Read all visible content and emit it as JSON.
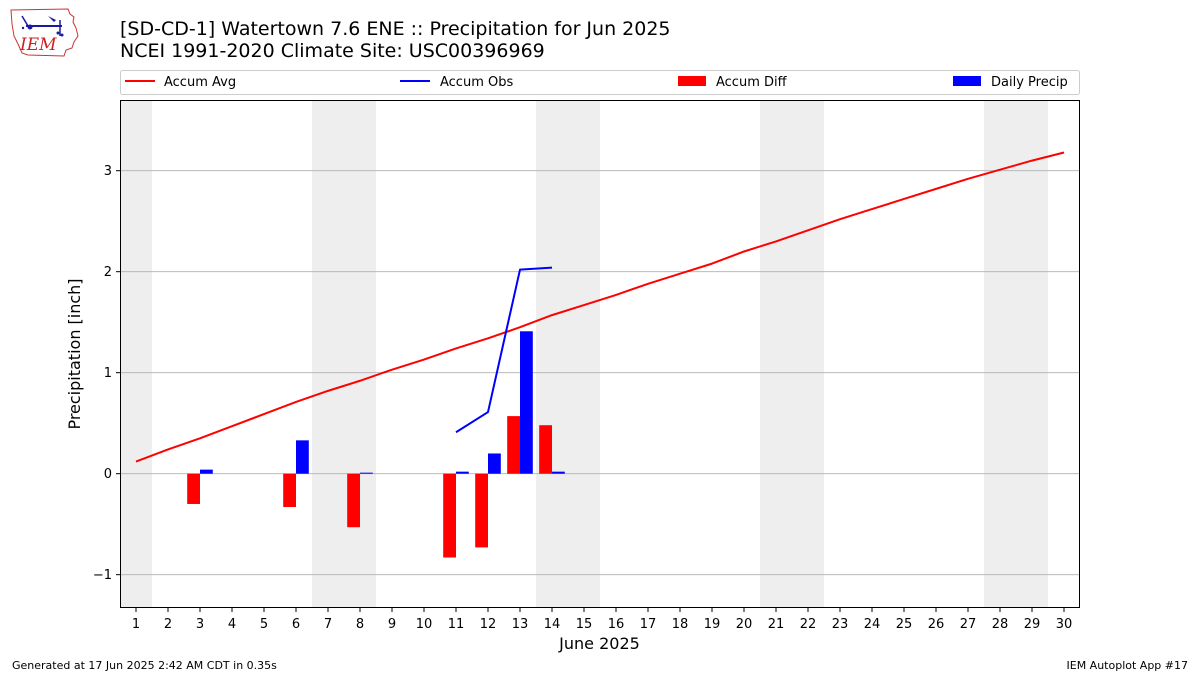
{
  "header": {
    "title_line1": "[SD-CD-1] Watertown 7.6 ENE :: Precipitation for Jun 2025",
    "title_line2": "NCEI 1991-2020 Climate Site: USC00396969",
    "logo_text": "IEM"
  },
  "footer": {
    "generated": "Generated at 17 Jun 2025 2:42 AM CDT in 0.35s",
    "app": "IEM Autoplot App #17"
  },
  "colors": {
    "accum_avg": "#ff0000",
    "accum_obs": "#0000ff",
    "accum_diff": "#ff0000",
    "daily_precip": "#0000ff",
    "weekend_shade": "#eeeeee",
    "grid": "#b0b0b0"
  },
  "chart_data": {
    "type": "bar",
    "xlabel": "June 2025",
    "ylabel": "Precipitation [inch]",
    "x": [
      1,
      2,
      3,
      4,
      5,
      6,
      7,
      8,
      9,
      10,
      11,
      12,
      13,
      14,
      15,
      16,
      17,
      18,
      19,
      20,
      21,
      22,
      23,
      24,
      25,
      26,
      27,
      28,
      29,
      30
    ],
    "xlim": [
      0.5,
      30.5
    ],
    "ylim": [
      -1.33,
      3.7
    ],
    "yticks": [
      -1,
      0,
      1,
      2,
      3
    ],
    "ytick_labels": [
      "−1",
      "0",
      "1",
      "2",
      "3"
    ],
    "grid": "y",
    "legend_position": "top",
    "legend": [
      "Accum Avg",
      "Accum Obs",
      "Accum Diff",
      "Daily Precip"
    ],
    "weekend_days": [
      1,
      7,
      8,
      14,
      15,
      21,
      22,
      28,
      29
    ],
    "series": [
      {
        "name": "Accum Avg",
        "kind": "line",
        "x": [
          1,
          2,
          3,
          4,
          5,
          6,
          7,
          8,
          9,
          10,
          11,
          12,
          13,
          14,
          15,
          16,
          17,
          18,
          19,
          20,
          21,
          22,
          23,
          24,
          25,
          26,
          27,
          28,
          29,
          30
        ],
        "values": [
          0.12,
          0.24,
          0.35,
          0.47,
          0.59,
          0.71,
          0.82,
          0.92,
          1.03,
          1.13,
          1.24,
          1.34,
          1.45,
          1.57,
          1.67,
          1.77,
          1.88,
          1.98,
          2.08,
          2.2,
          2.3,
          2.41,
          2.52,
          2.62,
          2.72,
          2.82,
          2.92,
          3.01,
          3.1,
          3.18
        ]
      },
      {
        "name": "Accum Obs",
        "kind": "line",
        "x": [
          11,
          12,
          13,
          14
        ],
        "values": [
          0.41,
          0.61,
          2.02,
          2.04
        ]
      },
      {
        "name": "Accum Diff",
        "kind": "bar",
        "x": [
          3,
          6,
          8,
          11,
          12,
          13,
          14
        ],
        "values": [
          -0.3,
          -0.33,
          -0.53,
          -0.83,
          -0.73,
          0.57,
          0.48
        ]
      },
      {
        "name": "Daily Precip",
        "kind": "bar",
        "x": [
          3,
          6,
          8,
          11,
          12,
          13,
          14
        ],
        "values": [
          0.04,
          0.33,
          0.01,
          0.02,
          0.2,
          1.41,
          0.02
        ]
      }
    ]
  }
}
